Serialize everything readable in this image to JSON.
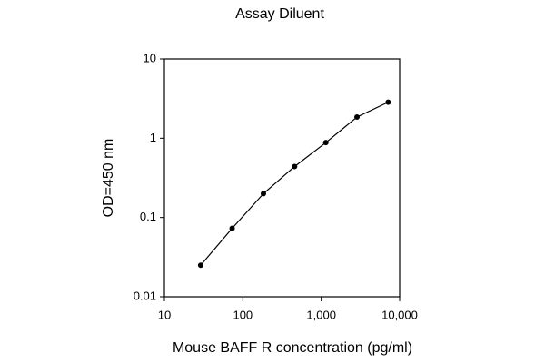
{
  "chart_data": {
    "type": "line",
    "title": "Assay Diluent",
    "x_label": "Mouse BAFF R concentration (pg/ml)",
    "y_label": "OD=450 nm",
    "x": [
      29,
      73,
      183,
      457,
      1143,
      2857,
      7143
    ],
    "series": [
      {
        "name": "Assay Diluent",
        "color": "#000000",
        "values": [
          0.025,
          0.073,
          0.2,
          0.44,
          0.88,
          1.85,
          2.85
        ]
      }
    ],
    "xlim": [
      10,
      10000
    ],
    "ylim": [
      0.01,
      10
    ],
    "xticks": [
      10,
      100,
      {
        "value": 1000,
        "label": "1,000"
      },
      {
        "value": 10000,
        "label": "10,000"
      }
    ],
    "yticks": [
      0.01,
      0.1,
      1,
      10
    ],
    "xscale": "log",
    "yscale": "log",
    "grid": false
  }
}
